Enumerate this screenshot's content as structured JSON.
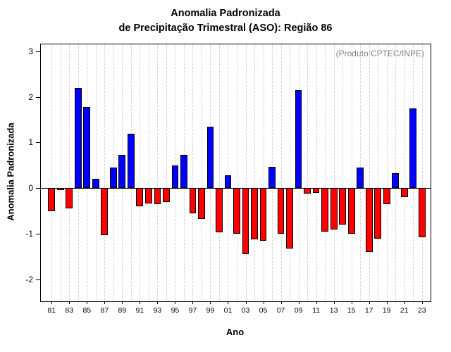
{
  "chart_data": {
    "type": "bar",
    "title_lines": [
      "Anomalia Padronizada",
      "de Precipitação Trimestral (ASO): Região 86"
    ],
    "annotation": "(Produto:CPTEC/INPE)",
    "xlabel": "Ano",
    "ylabel": "Anomalia Padronizada",
    "ylim": [
      -2.48,
      3.15
    ],
    "yticks": [
      -2,
      -1,
      0,
      1,
      2,
      3
    ],
    "years": [
      "81",
      "82",
      "83",
      "84",
      "85",
      "86",
      "87",
      "88",
      "89",
      "90",
      "91",
      "92",
      "93",
      "94",
      "95",
      "96",
      "97",
      "98",
      "99",
      "00",
      "01",
      "02",
      "03",
      "04",
      "05",
      "06",
      "07",
      "08",
      "09",
      "10",
      "11",
      "12",
      "13",
      "14",
      "15",
      "16",
      "17",
      "18",
      "19",
      "20",
      "21",
      "22",
      "23"
    ],
    "values": [
      -0.5,
      -0.05,
      -0.45,
      2.2,
      1.78,
      0.2,
      -1.03,
      0.45,
      0.73,
      1.19,
      -0.4,
      -0.33,
      -0.35,
      -0.3,
      0.5,
      0.73,
      -0.55,
      -0.68,
      1.34,
      -0.97,
      0.28,
      -1.0,
      -1.45,
      -1.12,
      -1.15,
      0.47,
      -1.0,
      -1.33,
      2.15,
      -0.12,
      -0.1,
      -0.95,
      -0.9,
      -0.8,
      -1.0,
      0.45,
      -1.4,
      -1.1,
      -0.35,
      0.33,
      -0.2,
      1.75,
      -1.08
    ],
    "xtick_labels": [
      "81",
      "83",
      "85",
      "87",
      "89",
      "91",
      "93",
      "95",
      "97",
      "99",
      "01",
      "03",
      "05",
      "07",
      "09",
      "11",
      "13",
      "15",
      "17",
      "19",
      "21",
      "23"
    ],
    "colors": {
      "positive": "#0000ff",
      "negative": "#ff0000",
      "bar_border": "#000000",
      "grid": "#c9c9c9",
      "annotation": "#808080"
    },
    "grid": "vertical-dotted",
    "legend": "none"
  }
}
